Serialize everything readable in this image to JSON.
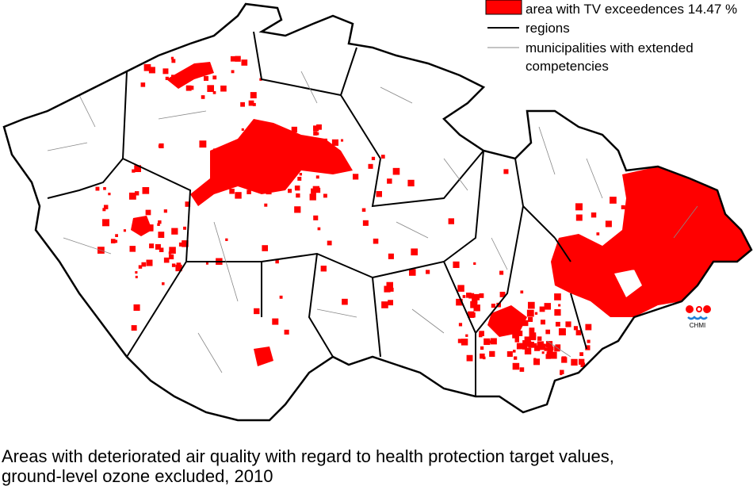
{
  "legend": {
    "items": [
      {
        "label": "area with TV exceedences 14.47 %"
      },
      {
        "label": "regions"
      },
      {
        "label": "municipalities with extended competencies"
      }
    ]
  },
  "logo": {
    "text": "CHMI"
  },
  "caption": {
    "lines": [
      "Areas with deteriorated air quality with regard to health protection target values,",
      "ground-level ozone excluded, 2010"
    ]
  }
}
